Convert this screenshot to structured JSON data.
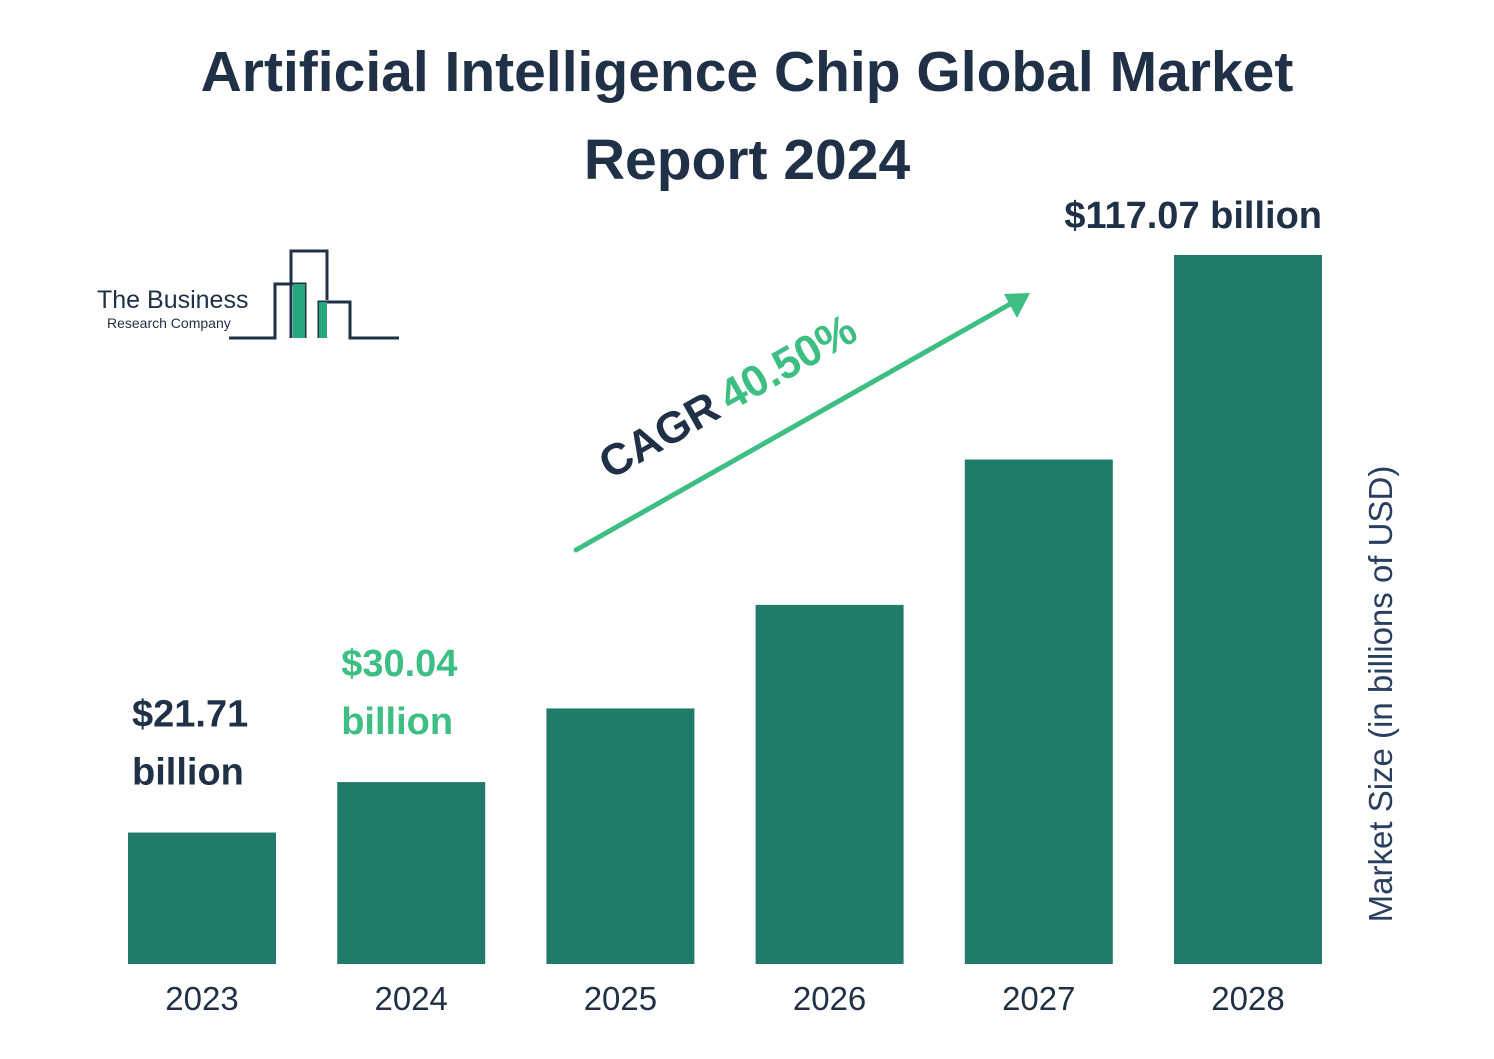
{
  "logo": {
    "name": "The Business",
    "subtitle": "Research Company"
  },
  "chart_data": {
    "type": "bar",
    "title": "Artificial Intelligence Chip Global Market\nReport 2024",
    "categories": [
      "2023",
      "2024",
      "2025",
      "2026",
      "2027",
      "2028"
    ],
    "values": [
      21.71,
      30.04,
      42.2,
      59.3,
      83.3,
      117.07
    ],
    "data_labels": [
      {
        "index": 0,
        "lines": [
          "$21.71",
          "billion"
        ],
        "color": "#1f3047"
      },
      {
        "index": 1,
        "lines": [
          "$30.04",
          "billion"
        ],
        "color": "#3dbe82"
      },
      {
        "index": 5,
        "lines": [
          "$117.07 billion"
        ],
        "color": "#1f3047"
      }
    ],
    "ylabel": "Market Size (in billions of USD)",
    "ylim": [
      0,
      117.07
    ],
    "grid": false,
    "legend": "none",
    "annotation": {
      "label": "CAGR",
      "value": "40.50%"
    },
    "colors": {
      "bar": "#217b6b",
      "title": "#1f3047",
      "accent": "#3dbe82",
      "axis_text": "#1f3047",
      "ylabel": "#2a3f5f"
    }
  }
}
